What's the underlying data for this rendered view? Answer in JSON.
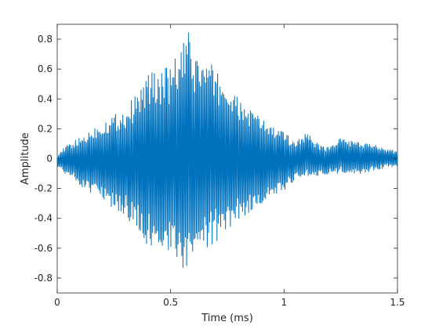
{
  "chart_data": {
    "type": "line",
    "title": "",
    "xlabel": "Time (ms)",
    "ylabel": "Amplitude",
    "xlim": [
      0,
      1.5
    ],
    "ylim": [
      -0.9,
      0.9
    ],
    "x_ticks": [
      0,
      0.5,
      1,
      1.5
    ],
    "x_tick_labels": [
      "0",
      "0.5",
      "1",
      "1.5"
    ],
    "y_ticks": [
      -0.8,
      -0.6,
      -0.4,
      -0.2,
      0,
      0.2,
      0.4,
      0.6,
      0.8
    ],
    "y_tick_labels": [
      "-0.8",
      "-0.6",
      "-0.4",
      "-0.2",
      "0",
      "0.2",
      "0.4",
      "0.6",
      "0.8"
    ],
    "grid": false,
    "line_color": "#0072BD",
    "series": [
      {
        "x": [
          0,
          0.05,
          0.1,
          0.15,
          0.2,
          0.25,
          0.3,
          0.35,
          0.4,
          0.45,
          0.5,
          0.55,
          0.58,
          0.6,
          0.65,
          0.7,
          0.75,
          0.8,
          0.85,
          0.9,
          0.95,
          1.0,
          1.05,
          1.1,
          1.15,
          1.2,
          1.25,
          1.3,
          1.35,
          1.4,
          1.45,
          1.5
        ],
        "values": [
          0.03,
          0.1,
          0.14,
          0.2,
          0.26,
          0.3,
          0.34,
          0.44,
          0.58,
          0.6,
          0.62,
          0.76,
          0.85,
          0.7,
          0.68,
          0.6,
          0.5,
          0.4,
          0.34,
          0.28,
          0.22,
          0.18,
          0.12,
          0.18,
          0.1,
          0.08,
          0.14,
          0.12,
          0.1,
          0.1,
          0.07,
          0.05
        ]
      },
      {
        "x": [
          0,
          0.05,
          0.1,
          0.15,
          0.2,
          0.25,
          0.3,
          0.35,
          0.4,
          0.45,
          0.5,
          0.55,
          0.58,
          0.6,
          0.65,
          0.7,
          0.75,
          0.8,
          0.85,
          0.9,
          0.95,
          1.0,
          1.05,
          1.1,
          1.15,
          1.2,
          1.25,
          1.3,
          1.35,
          1.4,
          1.45,
          1.5
        ],
        "values": [
          -0.05,
          -0.12,
          -0.18,
          -0.24,
          -0.3,
          -0.34,
          -0.38,
          -0.48,
          -0.6,
          -0.62,
          -0.66,
          -0.76,
          -0.79,
          -0.68,
          -0.62,
          -0.56,
          -0.5,
          -0.42,
          -0.36,
          -0.3,
          -0.26,
          -0.22,
          -0.14,
          -0.12,
          -0.12,
          -0.1,
          -0.1,
          -0.1,
          -0.1,
          -0.08,
          -0.06,
          -0.05
        ]
      }
    ]
  }
}
